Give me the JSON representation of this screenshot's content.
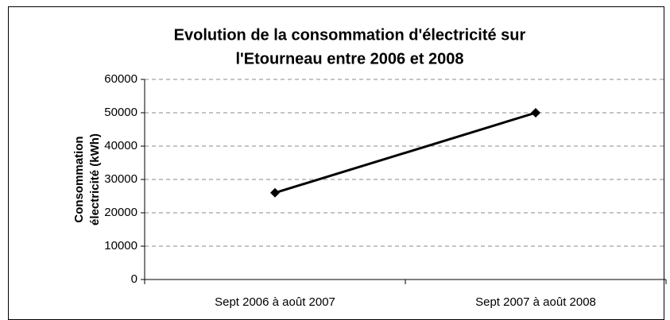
{
  "chart_data": {
    "type": "line",
    "title": [
      "Evolution de la consommation d'électricité sur",
      "l'Etourneau entre 2006 et 2008"
    ],
    "y_label": [
      "Consommation",
      "électricité (kWh)"
    ],
    "categories": [
      "Sept 2006 à août 2007",
      "Sept 2007 à août 2008"
    ],
    "series": [
      {
        "color": "#000000",
        "values": [
          26000,
          50000
        ]
      }
    ],
    "ylim": [
      0,
      60000
    ],
    "yticks": [
      0,
      10000,
      20000,
      30000,
      40000,
      50000,
      60000
    ],
    "grid": true
  }
}
